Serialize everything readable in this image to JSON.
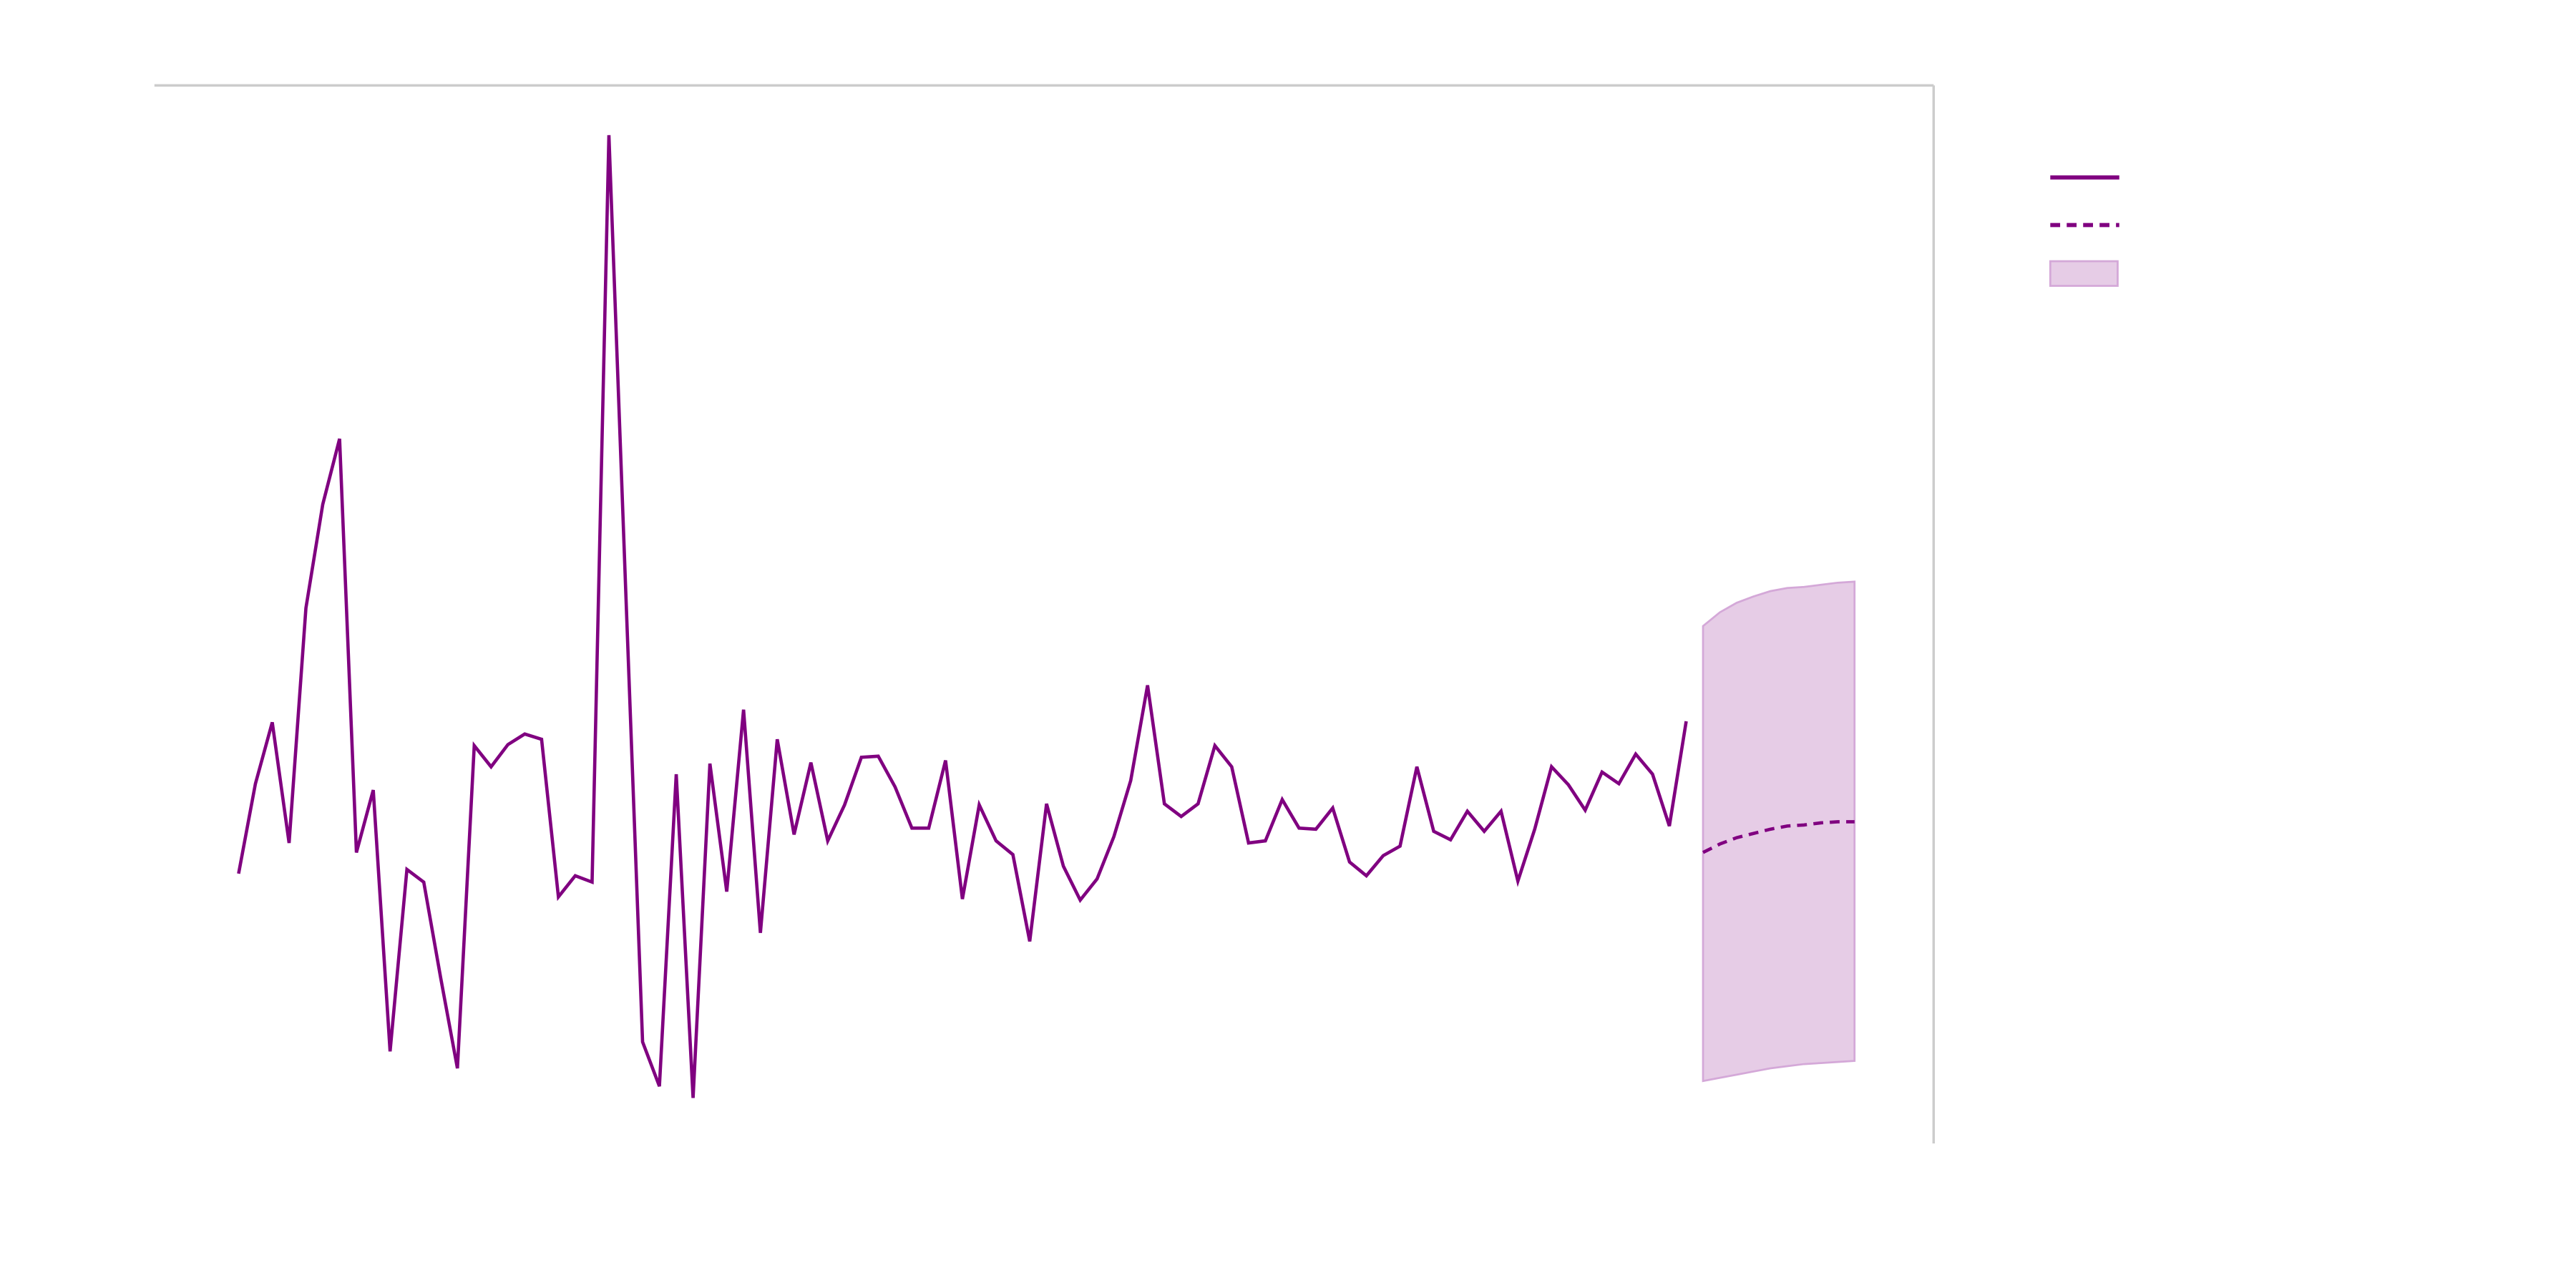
{
  "chart_data": {
    "type": "line",
    "xlim": [
      -5,
      100.7
    ],
    "ylim": [
      0,
      100
    ],
    "series": [
      {
        "color": "#800080",
        "dash": false,
        "x": [
          0,
          1,
          2,
          3,
          4,
          5,
          6,
          7,
          8,
          9,
          10,
          11,
          12,
          13,
          14,
          15,
          16,
          17,
          18,
          19,
          20,
          21,
          22,
          23,
          24,
          25,
          26,
          27,
          28,
          29,
          30,
          31,
          32,
          33,
          34,
          35,
          36,
          37,
          38,
          39,
          40,
          41,
          42,
          43,
          44,
          45,
          46,
          47,
          48,
          49,
          50,
          51,
          52,
          53,
          54,
          55,
          56,
          57,
          58,
          59,
          60,
          61,
          62,
          63,
          64,
          65,
          66,
          67,
          68,
          69,
          70,
          71,
          72,
          73,
          74,
          75,
          76,
          77,
          78,
          79,
          80,
          81,
          82,
          83,
          84,
          85,
          86
        ],
        "values": [
          25.5,
          34.0,
          39.8,
          28.4,
          50.6,
          60.4,
          66.6,
          27.5,
          33.4,
          8.7,
          25.9,
          24.7,
          15.7,
          7.1,
          37.6,
          35.6,
          37.7,
          38.7,
          38.2,
          23.3,
          25.3,
          24.7,
          95.3,
          52.2,
          9.6,
          5.4,
          34.9,
          4.3,
          35.9,
          23.8,
          41.0,
          19.9,
          38.2,
          29.2,
          36.0,
          28.6,
          32.0,
          36.5,
          36.6,
          33.7,
          29.8,
          29.8,
          36.2,
          23.1,
          32.0,
          28.6,
          27.3,
          19.1,
          32.1,
          26.2,
          23.0,
          25.0,
          29.0,
          34.3,
          43.3,
          32.1,
          30.9,
          32.1,
          37.6,
          35.6,
          28.4,
          28.6,
          32.5,
          29.8,
          29.7,
          31.7,
          26.6,
          25.3,
          27.2,
          28.1,
          35.6,
          29.5,
          28.7,
          31.4,
          29.5,
          31.4,
          24.8,
          29.7,
          35.6,
          33.9,
          31.5,
          35.1,
          34.0,
          36.8,
          34.9,
          30.0,
          39.9
        ]
      },
      {
        "color": "#800080",
        "dash": true,
        "x": [
          87,
          88,
          89,
          90,
          91,
          92,
          93,
          94,
          95,
          96
        ],
        "values": [
          27.5,
          28.3,
          28.9,
          29.3,
          29.7,
          30.0,
          30.1,
          30.3,
          30.4,
          30.4
        ]
      }
    ],
    "band": {
      "color": "#e6cce6",
      "edge": "#d4a8d8",
      "x": [
        87,
        88,
        89,
        90,
        91,
        92,
        93,
        94,
        95,
        96
      ],
      "upper": [
        48.9,
        50.2,
        51.1,
        51.7,
        52.2,
        52.5,
        52.6,
        52.8,
        53.0,
        53.1
      ],
      "lower": [
        5.9,
        6.2,
        6.5,
        6.8,
        7.1,
        7.3,
        7.5,
        7.6,
        7.7,
        7.8
      ]
    }
  }
}
